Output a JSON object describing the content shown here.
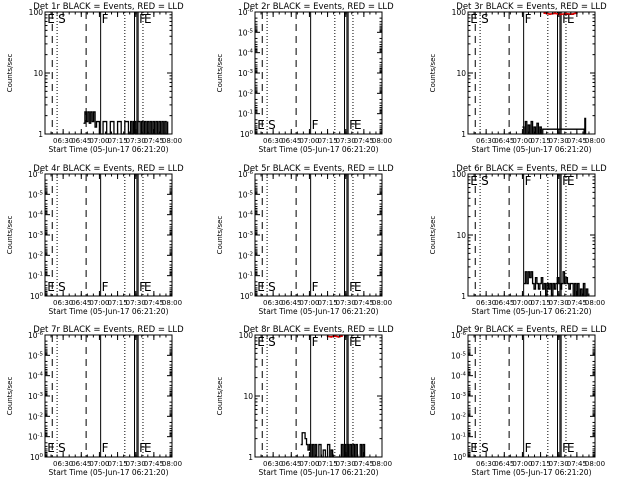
{
  "figure": {
    "time_range": [
      "06:15",
      "08:00"
    ],
    "x_ticks": [
      "06:30",
      "06:45",
      "07:00",
      "07:15",
      "07:30",
      "07:45",
      "08:00"
    ],
    "x_label": "Start Time (05-Jun-17 06:21:20)",
    "y_label": "Counts/sec",
    "markers": [
      {
        "label": "E",
        "time": "06:21",
        "style": "dashed"
      },
      {
        "label": "S",
        "time": "06:25",
        "style": "dotted"
      },
      {
        "label": "",
        "time": "06:49",
        "style": "dashed"
      },
      {
        "label": "F",
        "time": "07:01",
        "style": "solid"
      },
      {
        "label": "",
        "time": "07:21",
        "style": "dotted"
      },
      {
        "label": "",
        "time": "07:29",
        "style": "solid"
      },
      {
        "label": "",
        "time": "07:31",
        "style": "solid"
      },
      {
        "label": "F",
        "time": "07:32",
        "style": "solid"
      },
      {
        "label": "E",
        "time": "07:36",
        "style": "dotted"
      }
    ]
  },
  "chart_data": [
    {
      "type": "line",
      "title": "Det 1r BLACK = Events, RED = LLD",
      "y_scale": "log",
      "ylim": [
        1,
        100
      ],
      "y_ticks": [
        {
          "v": 1,
          "t": "1"
        },
        {
          "v": 10,
          "t": "10"
        },
        {
          "v": 100,
          "t": "100"
        }
      ],
      "label_pos": "top",
      "events": [
        [
          6.78,
          1.5
        ],
        [
          6.8,
          2.3
        ],
        [
          6.82,
          1.6
        ],
        [
          6.84,
          2.3
        ],
        [
          6.86,
          1.5
        ],
        [
          6.88,
          2.3
        ],
        [
          6.9,
          1.6
        ],
        [
          6.92,
          2.3
        ],
        [
          6.94,
          1.3
        ],
        [
          6.96,
          1.6
        ],
        [
          7.0,
          1.0
        ],
        [
          7.05,
          1.6
        ],
        [
          7.1,
          1.0
        ],
        [
          7.15,
          1.6
        ],
        [
          7.2,
          1.0
        ],
        [
          7.25,
          1.6
        ],
        [
          7.3,
          1.0
        ],
        [
          7.35,
          1.6
        ],
        [
          7.4,
          1.0
        ],
        [
          7.43,
          1.6
        ],
        [
          7.45,
          1.0
        ],
        [
          7.47,
          1.6
        ],
        [
          7.5,
          1.0
        ],
        [
          7.53,
          1.6
        ],
        [
          7.56,
          1.0
        ],
        [
          7.58,
          1.6
        ],
        [
          7.6,
          1.0
        ],
        [
          7.62,
          1.6
        ],
        [
          7.64,
          1.0
        ],
        [
          7.66,
          1.6
        ],
        [
          7.68,
          1.0
        ],
        [
          7.7,
          1.6
        ],
        [
          7.72,
          1.0
        ],
        [
          7.74,
          1.6
        ],
        [
          7.76,
          1.0
        ],
        [
          7.78,
          1.6
        ],
        [
          7.8,
          1.0
        ],
        [
          7.82,
          1.6
        ],
        [
          7.84,
          1.0
        ],
        [
          7.86,
          1.6
        ],
        [
          7.88,
          1.0
        ],
        [
          7.9,
          1.6
        ],
        [
          7.92,
          1.0
        ],
        [
          7.94,
          1.6
        ]
      ],
      "lld": []
    },
    {
      "type": "line",
      "title": "Det 2r BLACK = Events, RED = LLD",
      "y_scale": "log",
      "ylim": [
        1,
        1e-06
      ],
      "y_ticks": [
        {
          "v": 1e-06,
          "t": "10^-6"
        },
        {
          "v": 1e-05,
          "t": "10^-5"
        },
        {
          "v": 0.0001,
          "t": "10^-4"
        },
        {
          "v": 0.001,
          "t": "10^-3"
        },
        {
          "v": 0.01,
          "t": "10^-2"
        },
        {
          "v": 0.1,
          "t": "10^-1"
        },
        {
          "v": 1,
          "t": "10^0"
        }
      ],
      "label_pos": "bottom",
      "events": [],
      "lld": []
    },
    {
      "type": "line",
      "title": "Det 3r BLACK = Events, RED = LLD",
      "y_scale": "log",
      "ylim": [
        1,
        100
      ],
      "y_ticks": [
        {
          "v": 1,
          "t": "1"
        },
        {
          "v": 10,
          "t": "10"
        },
        {
          "v": 100,
          "t": "100"
        }
      ],
      "label_pos": "top",
      "events": [
        [
          7.0,
          1.3
        ],
        [
          7.02,
          1.0
        ],
        [
          7.04,
          1.6
        ],
        [
          7.06,
          1.0
        ],
        [
          7.08,
          1.4
        ],
        [
          7.1,
          1.0
        ],
        [
          7.12,
          1.6
        ],
        [
          7.14,
          1.0
        ],
        [
          7.16,
          1.3
        ],
        [
          7.18,
          1.0
        ],
        [
          7.2,
          1.5
        ],
        [
          7.22,
          1.0
        ],
        [
          7.24,
          1.3
        ],
        [
          7.26,
          1.0
        ],
        [
          7.28,
          1.2
        ],
        [
          7.85,
          1.0
        ],
        [
          7.86,
          1.8
        ],
        [
          7.87,
          1.0
        ]
      ],
      "lld": [
        [
          7.3,
          96
        ],
        [
          7.38,
          92
        ],
        [
          7.45,
          95
        ],
        [
          7.52,
          91
        ],
        [
          7.6,
          94
        ],
        [
          7.68,
          92
        ],
        [
          7.75,
          96
        ]
      ]
    },
    {
      "type": "line",
      "title": "Det 4r BLACK = Events, RED = LLD",
      "y_scale": "log",
      "ylim": [
        1,
        1e-06
      ],
      "y_ticks": [
        {
          "v": 1e-06,
          "t": "10^-6"
        },
        {
          "v": 1e-05,
          "t": "10^-5"
        },
        {
          "v": 0.0001,
          "t": "10^-4"
        },
        {
          "v": 0.001,
          "t": "10^-3"
        },
        {
          "v": 0.01,
          "t": "10^-2"
        },
        {
          "v": 0.1,
          "t": "10^-1"
        },
        {
          "v": 1,
          "t": "10^0"
        }
      ],
      "label_pos": "bottom",
      "events": [],
      "lld": []
    },
    {
      "type": "line",
      "title": "Det 5r BLACK = Events, RED = LLD",
      "y_scale": "log",
      "ylim": [
        1,
        1e-06
      ],
      "y_ticks": [
        {
          "v": 1e-06,
          "t": "10^-6"
        },
        {
          "v": 1e-05,
          "t": "10^-5"
        },
        {
          "v": 0.0001,
          "t": "10^-4"
        },
        {
          "v": 0.001,
          "t": "10^-3"
        },
        {
          "v": 0.01,
          "t": "10^-2"
        },
        {
          "v": 0.1,
          "t": "10^-1"
        },
        {
          "v": 1,
          "t": "10^0"
        }
      ],
      "label_pos": "bottom",
      "events": [],
      "lld": []
    },
    {
      "type": "line",
      "title": "Det 6r BLACK = Events, RED = LLD",
      "y_scale": "log",
      "ylim": [
        1,
        100
      ],
      "y_ticks": [
        {
          "v": 1,
          "t": "1"
        },
        {
          "v": 10,
          "t": "10"
        },
        {
          "v": 100,
          "t": "100"
        }
      ],
      "label_pos": "top",
      "events": [
        [
          7.02,
          1.6
        ],
        [
          7.04,
          2.5
        ],
        [
          7.06,
          1.6
        ],
        [
          7.08,
          2.5
        ],
        [
          7.1,
          2.0
        ],
        [
          7.12,
          2.5
        ],
        [
          7.14,
          1.6
        ],
        [
          7.16,
          1.3
        ],
        [
          7.18,
          2.0
        ],
        [
          7.2,
          1.6
        ],
        [
          7.22,
          1.3
        ],
        [
          7.24,
          1.6
        ],
        [
          7.26,
          2.0
        ],
        [
          7.28,
          1.3
        ],
        [
          7.3,
          1.6
        ],
        [
          7.32,
          1.0
        ],
        [
          7.34,
          1.6
        ],
        [
          7.36,
          1.3
        ],
        [
          7.38,
          1.6
        ],
        [
          7.4,
          1.0
        ],
        [
          7.42,
          1.6
        ],
        [
          7.44,
          1.3
        ],
        [
          7.46,
          1.6
        ],
        [
          7.48,
          2.0
        ],
        [
          7.5,
          1.6
        ],
        [
          7.52,
          1.3
        ],
        [
          7.54,
          1.6
        ],
        [
          7.56,
          2.5
        ],
        [
          7.58,
          1.6
        ],
        [
          7.6,
          2.0
        ],
        [
          7.62,
          1.6
        ],
        [
          7.64,
          1.3
        ],
        [
          7.66,
          1.6
        ],
        [
          7.7,
          1.0
        ],
        [
          7.72,
          1.6
        ],
        [
          7.74,
          1.0
        ],
        [
          7.76,
          1.6
        ],
        [
          7.78,
          1.0
        ],
        [
          7.8,
          1.3
        ],
        [
          7.82,
          1.0
        ],
        [
          7.84,
          1.6
        ],
        [
          7.86,
          1.0
        ],
        [
          7.88,
          1.3
        ],
        [
          7.9,
          1.0
        ]
      ],
      "lld": []
    },
    {
      "type": "line",
      "title": "Det 7r BLACK = Events, RED = LLD",
      "y_scale": "log",
      "ylim": [
        1,
        1e-06
      ],
      "y_ticks": [
        {
          "v": 1e-06,
          "t": "10^-6"
        },
        {
          "v": 1e-05,
          "t": "10^-5"
        },
        {
          "v": 0.0001,
          "t": "10^-4"
        },
        {
          "v": 0.001,
          "t": "10^-3"
        },
        {
          "v": 0.01,
          "t": "10^-2"
        },
        {
          "v": 0.1,
          "t": "10^-1"
        },
        {
          "v": 1,
          "t": "10^0"
        }
      ],
      "label_pos": "bottom",
      "events": [],
      "lld": []
    },
    {
      "type": "line",
      "title": "Det 8r BLACK = Events, RED = LLD",
      "y_scale": "log",
      "ylim": [
        1,
        100
      ],
      "y_ticks": [
        {
          "v": 1,
          "t": "1"
        },
        {
          "v": 10,
          "t": "10"
        },
        {
          "v": 100,
          "t": "100"
        }
      ],
      "label_pos": "top",
      "events": [
        [
          6.88,
          1.6
        ],
        [
          6.9,
          2.5
        ],
        [
          6.92,
          2.5
        ],
        [
          6.94,
          2.0
        ],
        [
          6.96,
          1.6
        ],
        [
          6.98,
          1.3
        ],
        [
          7.0,
          1.6
        ],
        [
          7.02,
          1.0
        ],
        [
          7.04,
          1.6
        ],
        [
          7.06,
          1.0
        ],
        [
          7.08,
          1.6
        ],
        [
          7.1,
          1.0
        ],
        [
          7.13,
          1.6
        ],
        [
          7.16,
          1.0
        ],
        [
          7.19,
          1.3
        ],
        [
          7.22,
          1.0
        ],
        [
          7.25,
          1.6
        ],
        [
          7.28,
          1.0
        ],
        [
          7.3,
          1.3
        ],
        [
          7.32,
          1.0
        ],
        [
          7.42,
          1.0
        ],
        [
          7.44,
          1.6
        ],
        [
          7.46,
          1.0
        ],
        [
          7.48,
          1.6
        ],
        [
          7.5,
          1.0
        ],
        [
          7.52,
          1.6
        ],
        [
          7.54,
          1.0
        ],
        [
          7.56,
          1.6
        ],
        [
          7.58,
          1.0
        ],
        [
          7.6,
          1.6
        ],
        [
          7.62,
          1.0
        ],
        [
          7.64,
          1.6
        ],
        [
          7.66,
          1.0
        ],
        [
          7.7,
          1.6
        ],
        [
          7.72,
          1.0
        ],
        [
          7.74,
          1.6
        ],
        [
          7.76,
          1.0
        ]
      ],
      "lld": [
        [
          7.25,
          95
        ],
        [
          7.3,
          93
        ],
        [
          7.35,
          96
        ],
        [
          7.4,
          93
        ],
        [
          7.45,
          96
        ]
      ]
    },
    {
      "type": "line",
      "title": "Det 9r BLACK = Events, RED = LLD",
      "y_scale": "log",
      "ylim": [
        1,
        1e-06
      ],
      "y_ticks": [
        {
          "v": 1e-06,
          "t": "10^-6"
        },
        {
          "v": 1e-05,
          "t": "10^-5"
        },
        {
          "v": 0.0001,
          "t": "10^-4"
        },
        {
          "v": 0.001,
          "t": "10^-3"
        },
        {
          "v": 0.01,
          "t": "10^-2"
        },
        {
          "v": 0.1,
          "t": "10^-1"
        },
        {
          "v": 1,
          "t": "10^0"
        }
      ],
      "label_pos": "bottom",
      "events": [],
      "lld": []
    }
  ]
}
